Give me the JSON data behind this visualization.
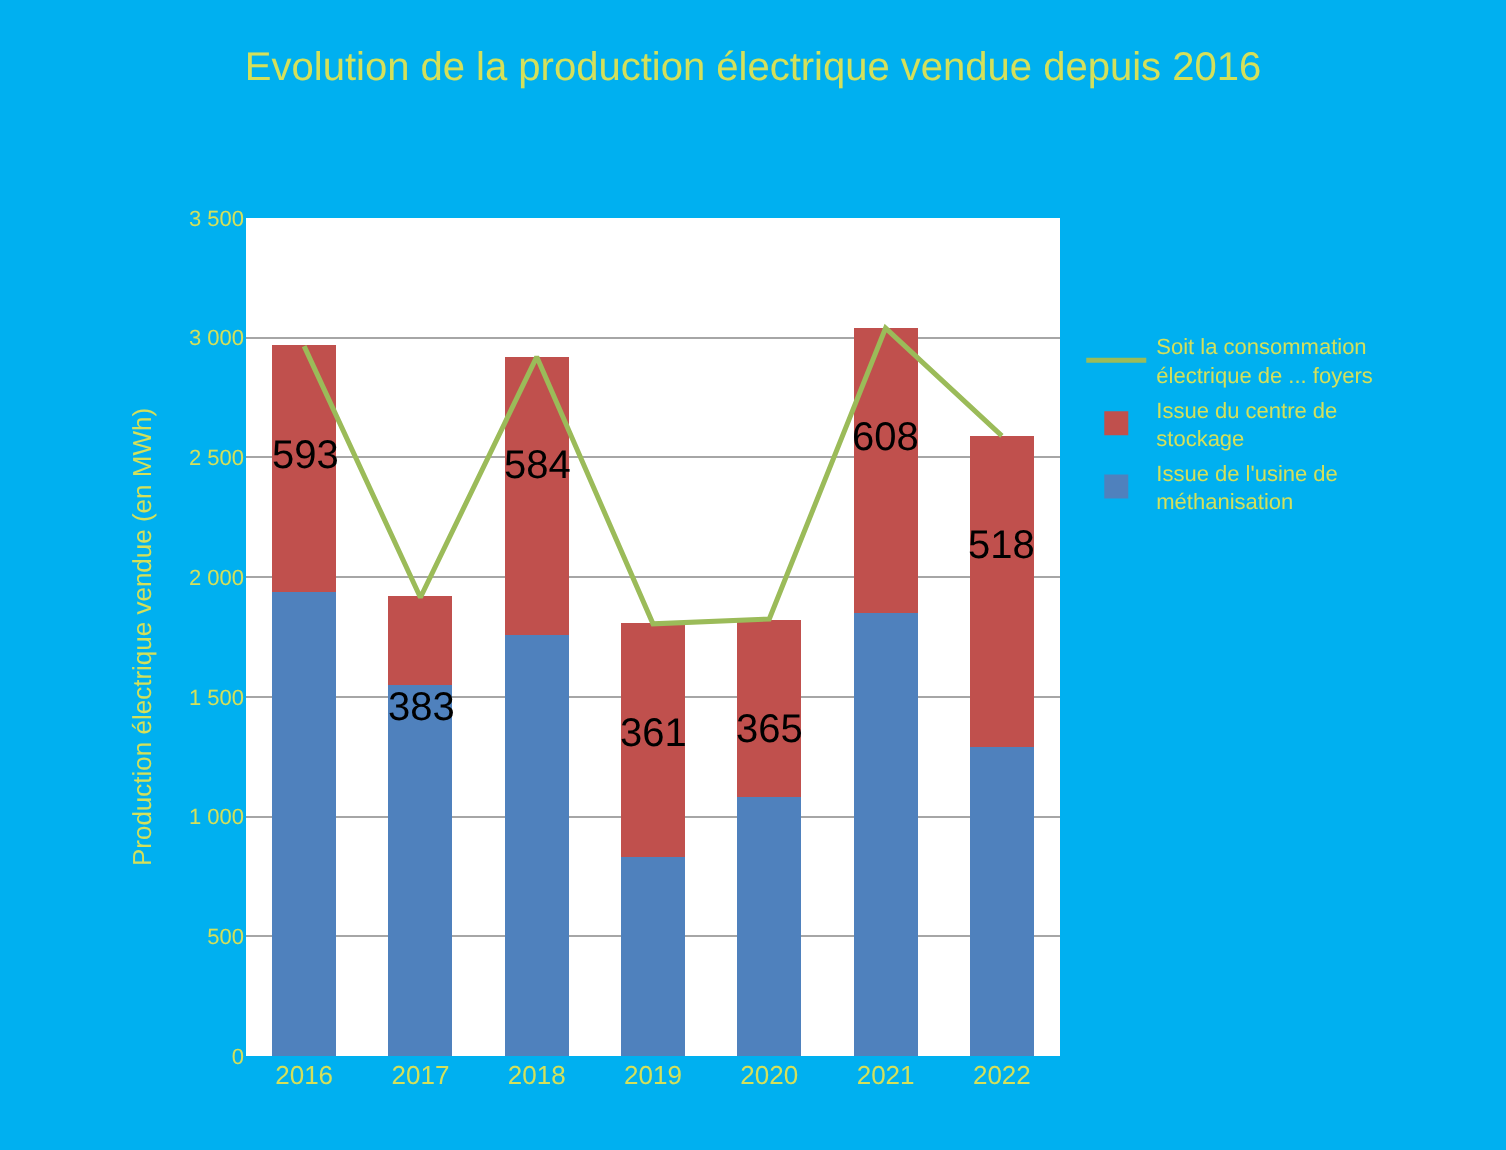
{
  "chart_data": {
    "type": "bar",
    "stacked": true,
    "title": "Evolution de la production électrique vendue depuis 2016",
    "ylabel": "Production électrique vendue (en MWh)",
    "categories": [
      "2016",
      "2017",
      "2018",
      "2019",
      "2020",
      "2021",
      "2022"
    ],
    "series": [
      {
        "name": "Issue de l'usine de méthanisation",
        "color": "#4f81bd",
        "values": [
          1940,
          1550,
          1760,
          830,
          1080,
          1850,
          1290
        ]
      },
      {
        "name": "Issue du centre de stockage",
        "color": "#c0504d",
        "values": [
          1030,
          370,
          1160,
          980,
          740,
          1190,
          1300
        ]
      },
      {
        "name": "Soit la consommation électrique de ... foyers",
        "type": "line",
        "axis": "y2",
        "color": "#9bbb59",
        "values": [
          593,
          383,
          584,
          361,
          365,
          608,
          518
        ],
        "value_labels": [
          "593",
          "383",
          "584",
          "361",
          "365",
          "608",
          "518"
        ]
      }
    ],
    "ylim": [
      0,
      3500
    ],
    "yticks": [
      0,
      500,
      {
        "value": 1000,
        "label": "1 000"
      },
      {
        "value": 1500,
        "label": "1 500"
      },
      {
        "value": 2000,
        "label": "2 000"
      },
      {
        "value": 2500,
        "label": "2 500"
      },
      {
        "value": 3000,
        "label": "3 000"
      },
      {
        "value": 3500,
        "label": "3 500"
      }
    ],
    "y2lim": [
      0,
      700
    ],
    "tick_labels": "xy",
    "grid": "y",
    "legend": "right"
  }
}
